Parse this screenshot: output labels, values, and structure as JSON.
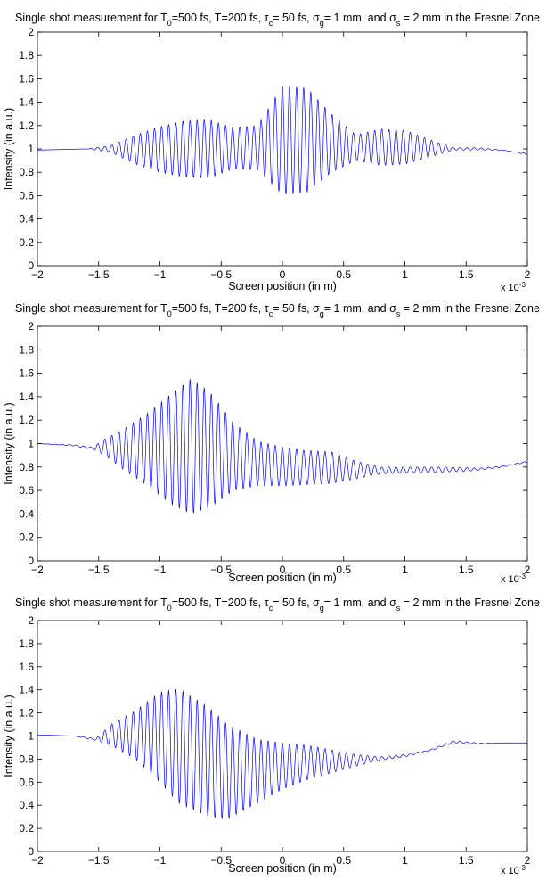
{
  "colors": {
    "line": "#0000ff",
    "axis": "#000000",
    "background": "#ffffff"
  },
  "chart_data": [
    {
      "type": "line",
      "title": {
        "parts": [
          {
            "t": "Single shot measurement for T"
          },
          {
            "t": "0",
            "sub": true
          },
          {
            "t": "=500 fs, T=200 fs, "
          },
          {
            "t": "τ"
          },
          {
            "t": "c",
            "sub": true
          },
          {
            "t": "= 50 fs, "
          },
          {
            "t": "σ"
          },
          {
            "t": "g",
            "sub": true
          },
          {
            "t": "= 1 mm, and "
          },
          {
            "t": "σ"
          },
          {
            "t": "s",
            "sub": true
          },
          {
            "t": " = 2 mm in the Fresnel Zone"
          }
        ]
      },
      "xlabel": "Screen position (in m)",
      "ylabel": "Intensity (in a.u.)",
      "xlim": [
        -2,
        2
      ],
      "ylim": [
        0,
        2
      ],
      "x_scale_note": {
        "base": "x 10",
        "exp": "-3"
      },
      "xticks": [
        "−2",
        "−1.5",
        "−1",
        "−0.5",
        "0",
        "0.5",
        "1",
        "1.5",
        "2"
      ],
      "yticks": [
        "0",
        "0.2",
        "0.4",
        "0.6",
        "0.8",
        "1",
        "1.2",
        "1.4",
        "1.6",
        "1.8",
        "2"
      ],
      "xtick_values": [
        -2,
        -1.5,
        -1,
        -0.5,
        0,
        0.5,
        1,
        1.5,
        2
      ],
      "ytick_values": [
        0,
        0.2,
        0.4,
        0.6,
        0.8,
        1,
        1.2,
        1.4,
        1.6,
        1.8,
        2
      ],
      "series": [
        {
          "envelope": {
            "x": [
              -2.0,
              -1.6,
              -1.4,
              -1.2,
              -1.0,
              -0.8,
              -0.6,
              -0.4,
              -0.2,
              0.0,
              0.2,
              0.4,
              0.6,
              0.8,
              1.0,
              1.2,
              1.4,
              1.6,
              1.8,
              2.0
            ],
            "upper": [
              0.99,
              1.0,
              1.03,
              1.12,
              1.19,
              1.24,
              1.25,
              1.18,
              1.2,
              1.54,
              1.52,
              1.3,
              1.12,
              1.17,
              1.16,
              1.08,
              1.01,
              1.01,
              0.99,
              0.96
            ],
            "lower": [
              0.99,
              1.0,
              0.97,
              0.87,
              0.8,
              0.76,
              0.75,
              0.83,
              0.82,
              0.61,
              0.63,
              0.8,
              0.9,
              0.86,
              0.87,
              0.93,
              0.99,
              0.99,
              0.99,
              0.95
            ]
          },
          "fringe_period": 0.058
        }
      ]
    },
    {
      "type": "line",
      "title": {
        "parts": [
          {
            "t": "Single shot measurement for T"
          },
          {
            "t": "0",
            "sub": true
          },
          {
            "t": "=500 fs, T=200 fs, "
          },
          {
            "t": "τ"
          },
          {
            "t": "c",
            "sub": true
          },
          {
            "t": "= 50 fs, "
          },
          {
            "t": "σ"
          },
          {
            "t": "g",
            "sub": true
          },
          {
            "t": "= 1 mm, and "
          },
          {
            "t": "σ"
          },
          {
            "t": "s",
            "sub": true
          },
          {
            "t": " = 2 mm in the Fresnel Zone"
          }
        ]
      },
      "xlabel": "Screen position (in m)",
      "ylabel": "Intensity (in a.u.)",
      "xlim": [
        -2,
        2
      ],
      "ylim": [
        0,
        2
      ],
      "x_scale_note": {
        "base": "x 10",
        "exp": "-3"
      },
      "xticks": [
        "−2",
        "−1.5",
        "−1",
        "−0.5",
        "0",
        "0.5",
        "1",
        "1.5",
        "2"
      ],
      "yticks": [
        "0",
        "0.2",
        "0.4",
        "0.6",
        "0.8",
        "1",
        "1.2",
        "1.4",
        "1.6",
        "1.8",
        "2"
      ],
      "xtick_values": [
        -2,
        -1.5,
        -1,
        -0.5,
        0,
        0.5,
        1,
        1.5,
        2
      ],
      "ytick_values": [
        0,
        0.2,
        0.4,
        0.6,
        0.8,
        1,
        1.2,
        1.4,
        1.6,
        1.8,
        2
      ],
      "series": [
        {
          "envelope": {
            "x": [
              -2.0,
              -1.7,
              -1.55,
              -1.45,
              -1.3,
              -1.1,
              -0.9,
              -0.75,
              -0.6,
              -0.4,
              -0.2,
              0.0,
              0.2,
              0.4,
              0.6,
              0.8,
              1.0,
              1.2,
              1.4,
              1.6,
              1.8,
              2.0
            ],
            "upper": [
              1.0,
              0.99,
              0.97,
              1.04,
              1.12,
              1.26,
              1.43,
              1.55,
              1.45,
              1.18,
              1.02,
              0.97,
              0.94,
              0.93,
              0.85,
              0.8,
              0.8,
              0.8,
              0.8,
              0.79,
              0.81,
              0.85
            ],
            "lower": [
              1.0,
              0.98,
              0.95,
              0.9,
              0.78,
              0.64,
              0.48,
              0.4,
              0.45,
              0.6,
              0.64,
              0.64,
              0.65,
              0.66,
              0.7,
              0.74,
              0.75,
              0.75,
              0.76,
              0.77,
              0.8,
              0.84
            ]
          },
          "fringe_period": 0.058
        }
      ]
    },
    {
      "type": "line",
      "title": {
        "parts": [
          {
            "t": "Single shot measurement for T"
          },
          {
            "t": "0",
            "sub": true
          },
          {
            "t": "=500 fs, T=200 fs, "
          },
          {
            "t": "τ"
          },
          {
            "t": "c",
            "sub": true
          },
          {
            "t": "= 50 fs, "
          },
          {
            "t": "σ"
          },
          {
            "t": "g",
            "sub": true
          },
          {
            "t": "= 1 mm, and "
          },
          {
            "t": "σ"
          },
          {
            "t": "s",
            "sub": true
          },
          {
            "t": " = 2 mm in the Fresnel Zone"
          }
        ]
      },
      "xlabel": "Screen position (in m)",
      "ylabel": "Intensity (in a.u.)",
      "xlim": [
        -2,
        2
      ],
      "ylim": [
        0,
        2
      ],
      "x_scale_note": {
        "base": "x 10",
        "exp": "-3"
      },
      "xticks": [
        "−2",
        "−1.5",
        "−1",
        "−0.5",
        "0",
        "0.5",
        "1",
        "1.5",
        "2"
      ],
      "yticks": [
        "0",
        "0.2",
        "0.4",
        "0.6",
        "0.8",
        "1",
        "1.2",
        "1.4",
        "1.6",
        "1.8",
        "2"
      ],
      "xtick_values": [
        -2,
        -1.5,
        -1,
        -0.5,
        0,
        0.5,
        1,
        1.5,
        2
      ],
      "ytick_values": [
        0,
        0.2,
        0.4,
        0.6,
        0.8,
        1,
        1.2,
        1.4,
        1.6,
        1.8,
        2
      ],
      "series": [
        {
          "envelope": {
            "x": [
              -2.0,
              -1.7,
              -1.52,
              -1.4,
              -1.2,
              -1.0,
              -0.85,
              -0.6,
              -0.45,
              -0.2,
              0.0,
              0.2,
              0.4,
              0.6,
              0.8,
              1.0,
              1.2,
              1.4,
              1.6,
              1.8,
              2.0
            ],
            "upper": [
              1.01,
              1.0,
              0.98,
              1.1,
              1.22,
              1.38,
              1.41,
              1.25,
              1.1,
              0.97,
              0.94,
              0.92,
              0.88,
              0.84,
              0.82,
              0.84,
              0.88,
              0.96,
              0.94,
              0.94,
              0.94
            ],
            "lower": [
              1.01,
              1.0,
              0.96,
              0.92,
              0.8,
              0.6,
              0.42,
              0.3,
              0.28,
              0.42,
              0.54,
              0.62,
              0.68,
              0.74,
              0.79,
              0.82,
              0.87,
              0.94,
              0.93,
              0.94,
              0.94
            ]
          },
          "fringe_period": 0.058
        }
      ]
    }
  ]
}
